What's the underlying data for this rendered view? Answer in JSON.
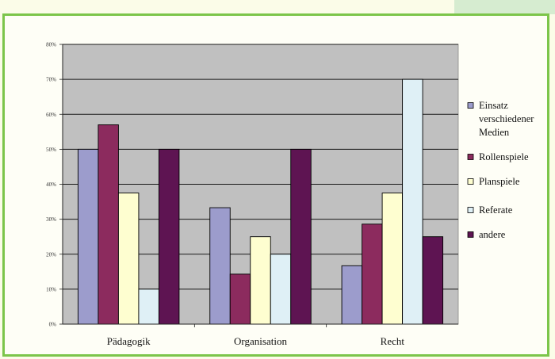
{
  "chart_data": {
    "type": "bar",
    "categories": [
      "Pädagogik",
      "Organisation",
      "Recht"
    ],
    "y_ticks": [
      "0%",
      "10%",
      "20%",
      "30%",
      "40%",
      "50%",
      "60%",
      "70%",
      "80%"
    ],
    "ylim": [
      0,
      80
    ],
    "grid": true,
    "legend_position": "right",
    "plot_background": "#c0c0c0",
    "series": [
      {
        "name": [
          "Einsatz",
          "verschiedener",
          "Medien"
        ],
        "color": "#9c9ccc",
        "values": [
          50,
          33.3,
          16.7
        ]
      },
      {
        "name": [
          "Rollenspiele"
        ],
        "color": "#8c2b5e",
        "values": [
          57,
          14.3,
          28.6
        ]
      },
      {
        "name": [
          "Planspiele"
        ],
        "color": "#fefed0",
        "values": [
          37.5,
          25,
          37.5
        ]
      },
      {
        "name": [
          "Referate"
        ],
        "color": "#dff0f6",
        "values": [
          10,
          20,
          70
        ]
      },
      {
        "name": [
          "andere"
        ],
        "color": "#5e1452",
        "values": [
          50,
          50,
          25
        ]
      }
    ]
  }
}
